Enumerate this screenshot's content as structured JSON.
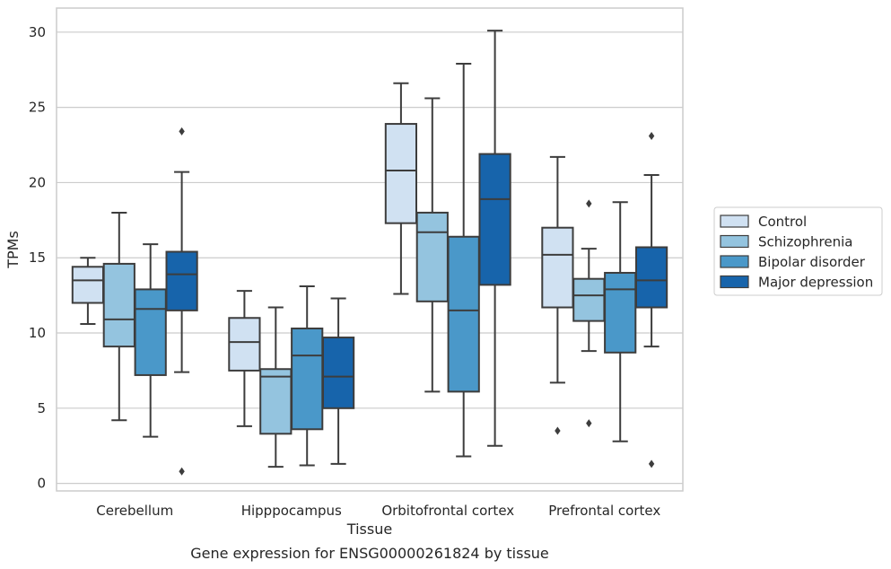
{
  "caption": "Gene expression for ENSG00000261824 by tissue",
  "chart_data": {
    "type": "box",
    "title": "",
    "xlabel": "Tissue",
    "ylabel": "TPMs",
    "ylim": [
      -0.5,
      31.6
    ],
    "yticks": [
      0,
      5,
      10,
      15,
      20,
      25,
      30
    ],
    "grid": "horizontal",
    "legend_position": "right",
    "categories": [
      "Cerebellum",
      "Hipppocampus",
      "Orbitofrontal cortex",
      "Prefrontal cortex"
    ],
    "series": [
      {
        "name": "Control",
        "color": "#d0e1f2",
        "boxes": [
          {
            "whislo": 10.6,
            "q1": 12.0,
            "med": 13.5,
            "q3": 14.4,
            "whishi": 15.0,
            "fliers": []
          },
          {
            "whislo": 3.8,
            "q1": 7.5,
            "med": 9.4,
            "q3": 11.0,
            "whishi": 12.8,
            "fliers": []
          },
          {
            "whislo": 12.6,
            "q1": 17.3,
            "med": 20.8,
            "q3": 23.9,
            "whishi": 26.6,
            "fliers": []
          },
          {
            "whislo": 6.7,
            "q1": 11.7,
            "med": 15.2,
            "q3": 17.0,
            "whishi": 21.7,
            "fliers": [
              3.5
            ]
          }
        ]
      },
      {
        "name": "Schizophrenia",
        "color": "#94c4df",
        "boxes": [
          {
            "whislo": 4.2,
            "q1": 9.1,
            "med": 10.9,
            "q3": 14.6,
            "whishi": 18.0,
            "fliers": []
          },
          {
            "whislo": 1.1,
            "q1": 3.3,
            "med": 7.1,
            "q3": 7.6,
            "whishi": 11.7,
            "fliers": []
          },
          {
            "whislo": 6.1,
            "q1": 12.1,
            "med": 16.7,
            "q3": 18.0,
            "whishi": 25.6,
            "fliers": []
          },
          {
            "whislo": 8.8,
            "q1": 10.8,
            "med": 12.5,
            "q3": 13.6,
            "whishi": 15.6,
            "fliers": [
              18.6,
              4.0
            ]
          }
        ]
      },
      {
        "name": "Bipolar disorder",
        "color": "#4a98c9",
        "boxes": [
          {
            "whislo": 3.1,
            "q1": 7.2,
            "med": 11.6,
            "q3": 12.9,
            "whishi": 15.9,
            "fliers": []
          },
          {
            "whislo": 1.2,
            "q1": 3.6,
            "med": 8.5,
            "q3": 10.3,
            "whishi": 13.1,
            "fliers": []
          },
          {
            "whislo": 1.8,
            "q1": 6.1,
            "med": 11.5,
            "q3": 16.4,
            "whishi": 27.9,
            "fliers": []
          },
          {
            "whislo": 2.8,
            "q1": 8.7,
            "med": 12.9,
            "q3": 14.0,
            "whishi": 18.7,
            "fliers": []
          }
        ]
      },
      {
        "name": "Major depression",
        "color": "#1764ab",
        "boxes": [
          {
            "whislo": 7.4,
            "q1": 11.5,
            "med": 13.9,
            "q3": 15.4,
            "whishi": 20.7,
            "fliers": [
              23.4,
              0.8
            ]
          },
          {
            "whislo": 1.3,
            "q1": 5.0,
            "med": 7.1,
            "q3": 9.7,
            "whishi": 12.3,
            "fliers": []
          },
          {
            "whislo": 2.5,
            "q1": 13.2,
            "med": 18.9,
            "q3": 21.9,
            "whishi": 30.1,
            "fliers": []
          },
          {
            "whislo": 9.1,
            "q1": 11.7,
            "med": 13.5,
            "q3": 15.7,
            "whishi": 20.5,
            "fliers": [
              23.1,
              1.3
            ]
          }
        ]
      }
    ]
  }
}
